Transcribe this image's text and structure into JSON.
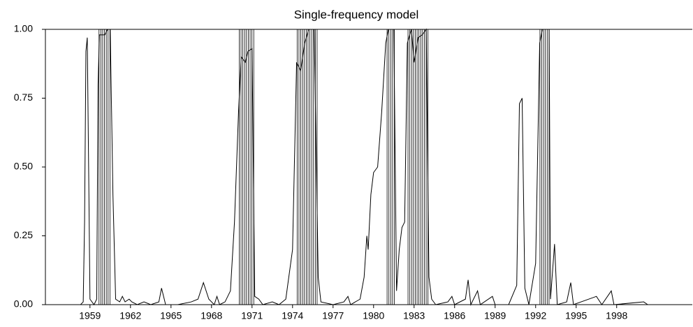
{
  "chart_data": {
    "type": "line",
    "title": "Single-frequency model",
    "xlim": [
      1955.7,
      2003.6
    ],
    "ylim": [
      0,
      1
    ],
    "xticks": [
      1959,
      1962,
      1965,
      1968,
      1971,
      1974,
      1977,
      1980,
      1983,
      1986,
      1989,
      1992,
      1995,
      1998
    ],
    "yticks": [
      {
        "value": 0,
        "label": "0.00"
      },
      {
        "value": 0.25,
        "label": "0.25"
      },
      {
        "value": 0.5,
        "label": "0.50"
      },
      {
        "value": 0.75,
        "label": "0.75"
      },
      {
        "value": 1,
        "label": "1.00"
      }
    ],
    "shaded_periods": [
      [
        1959.67,
        1960.6
      ],
      [
        1970.05,
        1971.19
      ],
      [
        1974.34,
        1975.84
      ],
      [
        1981.0,
        1981.62
      ],
      [
        1982.55,
        1984.05
      ],
      [
        1992.32,
        1993.09
      ]
    ],
    "series": [
      {
        "color": "#000000",
        "x": [
          1958.3,
          1958.5,
          1958.6,
          1958.7,
          1958.8,
          1958.9,
          1959.0,
          1959.3,
          1959.5,
          1959.6,
          1959.7,
          1959.9,
          1960.1,
          1960.3,
          1960.5,
          1960.7,
          1960.9,
          1961.2,
          1961.4,
          1961.6,
          1961.9,
          1962.1,
          1962.5,
          1963.0,
          1963.5,
          1964.1,
          1964.3,
          1964.6,
          1965.5,
          1966.5,
          1967.0,
          1967.4,
          1967.8,
          1968.2,
          1968.4,
          1968.6,
          1969.0,
          1969.4,
          1969.7,
          1970.0,
          1970.2,
          1970.5,
          1970.7,
          1971.0,
          1971.2,
          1971.5,
          1971.8,
          1972.5,
          1973.0,
          1973.5,
          1974.0,
          1974.3,
          1974.6,
          1974.9,
          1975.2,
          1975.6,
          1975.9,
          1976.1,
          1977.0,
          1977.8,
          1978.1,
          1978.3,
          1979.0,
          1979.3,
          1979.5,
          1979.6,
          1979.8,
          1980.0,
          1980.3,
          1980.6,
          1980.9,
          1981.1,
          1981.5,
          1981.7,
          1981.9,
          1982.1,
          1982.3,
          1982.5,
          1982.8,
          1983.0,
          1983.3,
          1983.6,
          1983.9,
          1984.1,
          1984.3,
          1984.6,
          1985.5,
          1985.8,
          1986.0,
          1986.8,
          1987.0,
          1987.2,
          1987.7,
          1987.9,
          1988.8,
          1989.0,
          1990.0,
          1990.6,
          1990.8,
          1991.0,
          1991.2,
          1991.5,
          1992.0,
          1992.3,
          1992.5,
          1993.0,
          1993.1,
          1993.4,
          1993.6,
          1994.3,
          1994.6,
          1994.8,
          1996.5,
          1996.9,
          1997.6,
          1997.8,
          2000.0,
          2000.3
        ],
        "values": [
          0.0,
          0.01,
          0.3,
          0.92,
          0.97,
          0.5,
          0.02,
          0.0,
          0.02,
          0.8,
          0.98,
          0.98,
          0.98,
          1.0,
          1.0,
          0.4,
          0.02,
          0.01,
          0.03,
          0.01,
          0.02,
          0.01,
          0.0,
          0.01,
          0.0,
          0.01,
          0.06,
          0.0,
          0.0,
          0.01,
          0.02,
          0.08,
          0.02,
          0.0,
          0.03,
          0.0,
          0.01,
          0.05,
          0.3,
          0.7,
          0.9,
          0.88,
          0.92,
          0.93,
          0.03,
          0.02,
          0.0,
          0.01,
          0.0,
          0.02,
          0.2,
          0.88,
          0.85,
          0.95,
          1.0,
          1.0,
          0.1,
          0.01,
          0.0,
          0.01,
          0.03,
          0.0,
          0.02,
          0.1,
          0.25,
          0.2,
          0.4,
          0.48,
          0.5,
          0.7,
          0.95,
          1.0,
          1.0,
          0.05,
          0.2,
          0.28,
          0.3,
          0.95,
          1.0,
          0.88,
          0.97,
          0.98,
          1.0,
          0.1,
          0.02,
          0.0,
          0.01,
          0.03,
          0.0,
          0.02,
          0.09,
          0.0,
          0.05,
          0.0,
          0.03,
          0.0,
          0.0,
          0.07,
          0.73,
          0.75,
          0.06,
          0.0,
          0.15,
          0.95,
          1.0,
          1.0,
          0.02,
          0.22,
          0.0,
          0.01,
          0.08,
          0.0,
          0.03,
          0.0,
          0.05,
          0.0,
          0.01,
          0.0
        ]
      }
    ]
  }
}
